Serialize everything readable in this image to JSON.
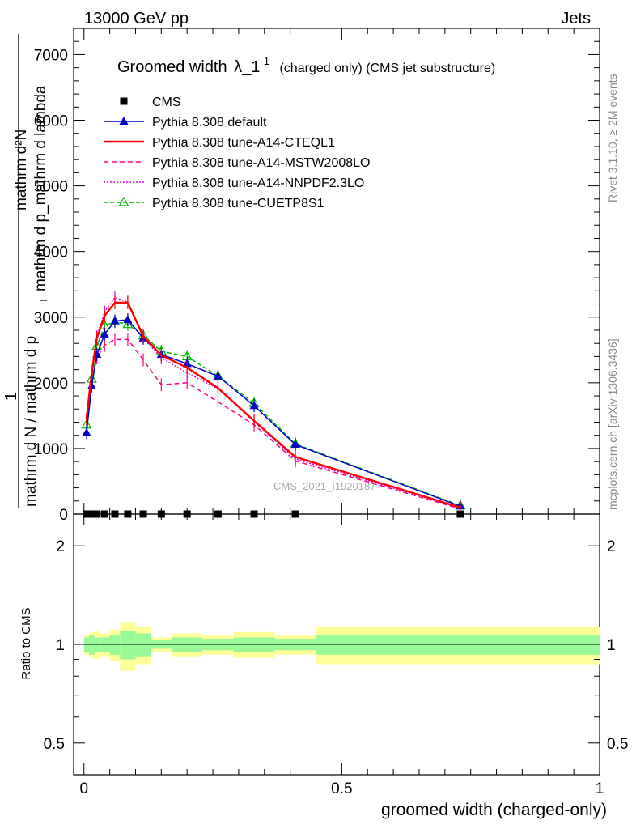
{
  "header": {
    "left": "13000 GeV pp",
    "right": "Jets"
  },
  "side_text": {
    "rivet": "Rivet 3.1.10, ≥ 2M events",
    "mcplots": "mcplots.cern.ch [arXiv:1306.3436]"
  },
  "watermark": "CMS_2021_I1920187",
  "chart_data": {
    "type": "line",
    "title_main": "Groomed width",
    "title_lambda": "λ_1",
    "title_sup": "1",
    "title_suffix": "(charged only) (CMS jet substructure)",
    "xlabel": "groomed width (charged-only)",
    "ylabel_top": "mathrm d²N",
    "ylabel_top2": "mathrm d p_mathrm d lambda",
    "ylabel_num": "1",
    "ylabel_den": "mathrm d N / mathrm d p",
    "ylabel_den2": "T",
    "ratio_ylabel": "Ratio to CMS",
    "xlim": [
      -0.02,
      1.0
    ],
    "ylim": [
      0,
      7400
    ],
    "x_ticks": [
      "0",
      "0.5",
      "1"
    ],
    "x_tick_values": [
      0,
      0.5,
      1
    ],
    "y_ticks": [
      "0",
      "1000",
      "2000",
      "3000",
      "4000",
      "5000",
      "6000",
      "7000"
    ],
    "y_tick_values": [
      0,
      1000,
      2000,
      3000,
      4000,
      5000,
      6000,
      7000
    ],
    "ratio_ylim": [
      0.4,
      2.5
    ],
    "ratio_ticks": [
      "0.5",
      "1",
      "2"
    ],
    "ratio_tick_values": [
      0.5,
      1,
      2
    ],
    "x": [
      0.005,
      0.015,
      0.025,
      0.04,
      0.06,
      0.085,
      0.115,
      0.15,
      0.2,
      0.26,
      0.33,
      0.41,
      0.73
    ],
    "series": [
      {
        "name": "CMS",
        "color": "#000000",
        "marker": "square",
        "values": [
          0,
          0,
          0,
          0,
          0,
          0,
          0,
          0,
          0,
          0,
          0,
          0,
          0
        ]
      },
      {
        "name": "Pythia 8.308 default",
        "color": "#0000cc",
        "marker": "triangle",
        "values": [
          1240,
          1950,
          2430,
          2740,
          2940,
          2960,
          2680,
          2430,
          2290,
          2100,
          1650,
          1060,
          120
        ]
      },
      {
        "name": "Pythia 8.308 tune-A14-CTEQL1",
        "color": "#ff0000",
        "marker": "none",
        "values": [
          1450,
          2150,
          2680,
          3020,
          3220,
          3220,
          2710,
          2420,
          2230,
          1920,
          1420,
          870,
          100
        ]
      },
      {
        "name": "Pythia 8.308 tune-A14-MSTW2008LO",
        "color": "#ff0080",
        "marker": "none",
        "values": [
          1340,
          2030,
          2380,
          2570,
          2660,
          2660,
          2350,
          1970,
          2000,
          1710,
          1360,
          810,
          80
        ]
      },
      {
        "name": "Pythia 8.308 tune-A14-NNPDF2.3LO",
        "color": "#ee00ee",
        "marker": "none",
        "values": [
          1420,
          2130,
          2700,
          3080,
          3300,
          3230,
          2680,
          2380,
          2150,
          1910,
          1410,
          840,
          90
        ]
      },
      {
        "name": "Pythia 8.308 tune-CUETP8S1",
        "color": "#00bb00",
        "marker": "triangle-open",
        "values": [
          1360,
          2060,
          2560,
          2870,
          2930,
          2890,
          2720,
          2480,
          2400,
          2100,
          1690,
          1070,
          130
        ]
      }
    ],
    "ratio_bands": {
      "bins": [
        [
          0.0,
          0.01
        ],
        [
          0.01,
          0.02
        ],
        [
          0.02,
          0.03
        ],
        [
          0.03,
          0.05
        ],
        [
          0.05,
          0.07
        ],
        [
          0.07,
          0.1
        ],
        [
          0.1,
          0.13
        ],
        [
          0.13,
          0.17
        ],
        [
          0.17,
          0.23
        ],
        [
          0.23,
          0.29
        ],
        [
          0.29,
          0.37
        ],
        [
          0.37,
          0.45
        ],
        [
          0.45,
          1.0
        ]
      ],
      "inner": [
        0.05,
        0.07,
        0.05,
        0.05,
        0.07,
        0.1,
        0.08,
        0.03,
        0.05,
        0.04,
        0.05,
        0.04,
        0.07
      ],
      "outer": [
        0.07,
        0.09,
        0.1,
        0.08,
        0.11,
        0.17,
        0.13,
        0.05,
        0.08,
        0.07,
        0.09,
        0.07,
        0.13
      ],
      "inner_color": "#99f999",
      "outer_color": "#ffff99"
    }
  }
}
